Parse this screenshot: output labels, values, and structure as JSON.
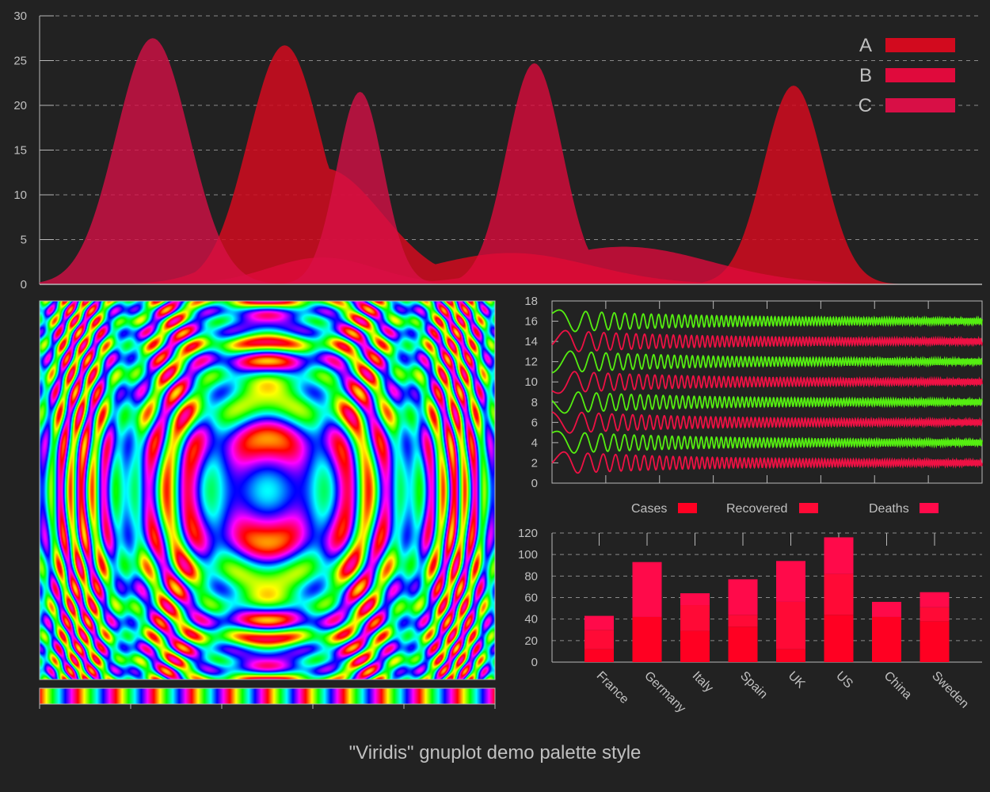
{
  "title": "\"Viridis\" gnuplot demo palette style",
  "colors": {
    "background": "#222222",
    "axis": "#b8b8b8",
    "grid": "#8a8a8a",
    "text": "#c0c0c0",
    "series_a": "#d20a1e",
    "series_b": "#e00a3c",
    "series_c": "#d80f46",
    "wave_green": "#55ee11",
    "wave_red": "#ee1144",
    "bar_cases": "#ff0022",
    "bar_recovered": "#ff0a36",
    "bar_deaths": "#ff0a4a"
  },
  "chart_data": [
    {
      "type": "area",
      "legend_position": "top-right",
      "grid": true,
      "xlim": [
        0,
        10
      ],
      "ylim": [
        0,
        30
      ],
      "yticks": [
        "0",
        "5",
        "10",
        "15",
        "20",
        "25",
        "30"
      ],
      "series": [
        {
          "name": "A",
          "peaks": [
            {
              "x": 2.6,
              "height": 26.7,
              "width": 0.55
            },
            {
              "x": 3.0,
              "height": 13.0,
              "width": 0.9
            },
            {
              "x": 5.0,
              "height": 3.5,
              "width": 1.2
            },
            {
              "x": 8.0,
              "height": 22.2,
              "width": 0.45
            }
          ]
        },
        {
          "name": "B",
          "peaks": [
            {
              "x": 5.25,
              "height": 24.7,
              "width": 0.42
            },
            {
              "x": 6.2,
              "height": 4.2,
              "width": 1.3
            },
            {
              "x": 3.0,
              "height": 3.0,
              "width": 0.8
            }
          ]
        },
        {
          "name": "C",
          "peaks": [
            {
              "x": 1.2,
              "height": 27.5,
              "width": 0.55
            },
            {
              "x": 3.4,
              "height": 21.5,
              "width": 0.35
            }
          ]
        }
      ]
    },
    {
      "type": "heatmap",
      "grid": false,
      "palette": "rainbow (cyclic)",
      "pattern": "sin(x^2 + y^2) interference rings"
    },
    {
      "type": "line",
      "grid": false,
      "ylim": [
        0,
        18
      ],
      "yticks": [
        "0",
        "2",
        "4",
        "6",
        "8",
        "10",
        "12",
        "14",
        "16",
        "18"
      ],
      "series": [
        {
          "offset": 2,
          "color": "red"
        },
        {
          "offset": 4,
          "color": "green"
        },
        {
          "offset": 6,
          "color": "red"
        },
        {
          "offset": 8,
          "color": "green"
        },
        {
          "offset": 10,
          "color": "red"
        },
        {
          "offset": 12,
          "color": "green"
        },
        {
          "offset": 14,
          "color": "red"
        },
        {
          "offset": 16,
          "color": "green"
        }
      ]
    },
    {
      "type": "bar",
      "stacked": true,
      "legend_position": "top",
      "grid": true,
      "ylim": [
        0,
        120
      ],
      "yticks": [
        "0",
        "20",
        "40",
        "60",
        "80",
        "100",
        "120"
      ],
      "categories": [
        "France",
        "Germany",
        "Italy",
        "Spain",
        "UK",
        "US",
        "China",
        "Sweden"
      ],
      "series": [
        {
          "name": "Cases",
          "values": [
            12,
            42,
            29,
            33,
            12,
            44,
            42,
            38
          ]
        },
        {
          "name": "Recovered",
          "values": [
            18,
            0,
            24,
            11,
            44,
            38,
            0,
            13
          ]
        },
        {
          "name": "Deaths",
          "values": [
            13,
            51,
            11,
            33,
            38,
            34,
            14,
            14
          ]
        }
      ]
    }
  ]
}
